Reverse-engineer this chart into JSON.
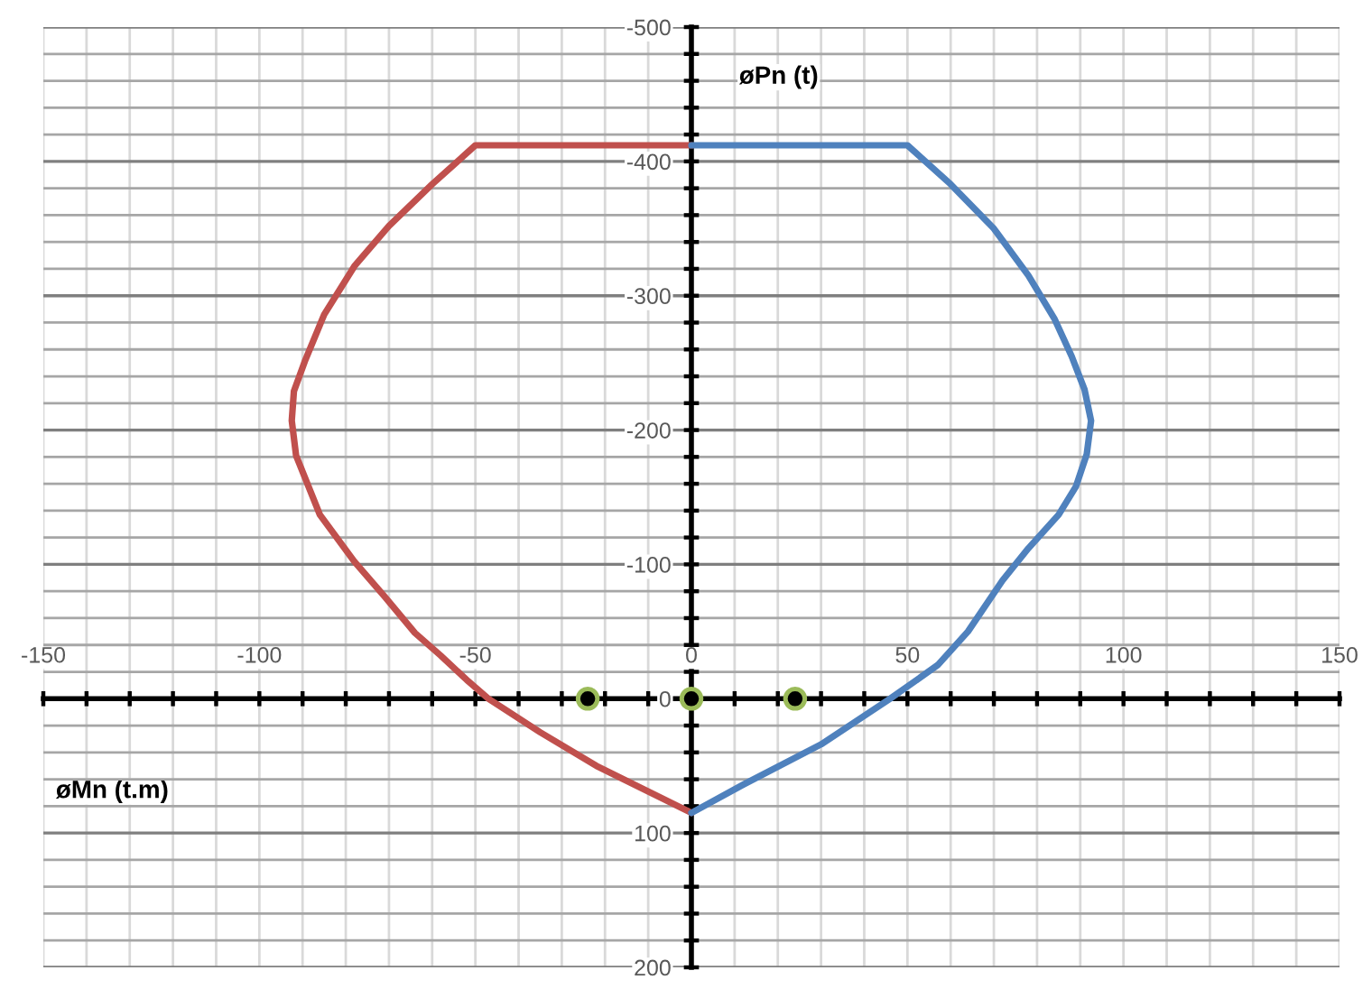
{
  "chart_data": {
    "type": "line",
    "xlabel": "øMn (t.m)",
    "ylabel": "øPn (t)",
    "xlim": [
      -150,
      150
    ],
    "xticks": [
      -150,
      {
        "value": -140,
        "label": null
      },
      {
        "value": -130,
        "label": null
      },
      {
        "value": -120,
        "label": null
      },
      {
        "value": -110,
        "label": null
      },
      -100,
      {
        "value": -90,
        "label": null
      },
      {
        "value": -80,
        "label": null
      },
      {
        "value": -70,
        "label": null
      },
      {
        "value": -60,
        "label": null
      },
      -50,
      {
        "value": -40,
        "label": null
      },
      {
        "value": -30,
        "label": null
      },
      {
        "value": -20,
        "label": null
      },
      {
        "value": -10,
        "label": null
      },
      0,
      {
        "value": 10,
        "label": null
      },
      {
        "value": 20,
        "label": null
      },
      {
        "value": 30,
        "label": null
      },
      {
        "value": 40,
        "label": null
      },
      50,
      {
        "value": 60,
        "label": null
      },
      {
        "value": 70,
        "label": null
      },
      {
        "value": 80,
        "label": null
      },
      {
        "value": 90,
        "label": null
      },
      100,
      {
        "value": 110,
        "label": null
      },
      {
        "value": 120,
        "label": null
      },
      {
        "value": 130,
        "label": null
      },
      {
        "value": 140,
        "label": null
      },
      150
    ],
    "ylim": [
      200,
      -500
    ],
    "yticks": [
      -500,
      {
        "value": -480,
        "label": null
      },
      {
        "value": -460,
        "label": null
      },
      {
        "value": -440,
        "label": null
      },
      {
        "value": -420,
        "label": null
      },
      -400,
      {
        "value": -380,
        "label": null
      },
      {
        "value": -360,
        "label": null
      },
      {
        "value": -340,
        "label": null
      },
      {
        "value": -320,
        "label": null
      },
      -300,
      {
        "value": -280,
        "label": null
      },
      {
        "value": -260,
        "label": null
      },
      {
        "value": -240,
        "label": null
      },
      {
        "value": -220,
        "label": null
      },
      -200,
      {
        "value": -180,
        "label": null
      },
      {
        "value": -160,
        "label": null
      },
      {
        "value": -140,
        "label": null
      },
      {
        "value": -120,
        "label": null
      },
      -100,
      {
        "value": -80,
        "label": null
      },
      {
        "value": -60,
        "label": null
      },
      {
        "value": -40,
        "label": null
      },
      {
        "value": -20,
        "label": null
      },
      0,
      {
        "value": 20,
        "label": null
      },
      {
        "value": 40,
        "label": null
      },
      {
        "value": 60,
        "label": null
      },
      {
        "value": 80,
        "label": null
      },
      100,
      {
        "value": 120,
        "label": null
      },
      {
        "value": 140,
        "label": null
      },
      {
        "value": 160,
        "label": null
      },
      {
        "value": 180,
        "label": null
      },
      200
    ],
    "grid": true,
    "line_style": "solid",
    "series": [
      {
        "color": "#c0504d",
        "x": [
          0,
          -50,
          -60,
          -70,
          -78,
          -85,
          -89.5,
          -92,
          -92.5,
          -91.5,
          -86,
          -78,
          -71,
          -64,
          -58,
          -52,
          -47,
          -35,
          -22,
          0
        ],
        "values": [
          -412,
          -412,
          -383,
          -352,
          -322,
          -286,
          -251,
          -229,
          -207,
          -181,
          -137,
          -102,
          -76,
          -49,
          -32,
          -14,
          0,
          25,
          50,
          85
        ]
      },
      {
        "color": "#4f81bd",
        "x": [
          0,
          50,
          60,
          70,
          78,
          84,
          88,
          91,
          92.5,
          91.5,
          89,
          85,
          78,
          72,
          64,
          57,
          46,
          30,
          12,
          0
        ],
        "values": [
          -412,
          -412,
          -383,
          -350,
          -315,
          -283,
          -255,
          -230,
          -207,
          -182,
          -158,
          -137,
          -112,
          -88,
          -50,
          -25,
          0,
          34,
          64,
          85
        ]
      },
      {
        "type": "scatter",
        "color": "#000000",
        "marker": "circle",
        "x": [
          -24,
          0,
          24
        ],
        "values": [
          0,
          0,
          0
        ]
      }
    ]
  }
}
